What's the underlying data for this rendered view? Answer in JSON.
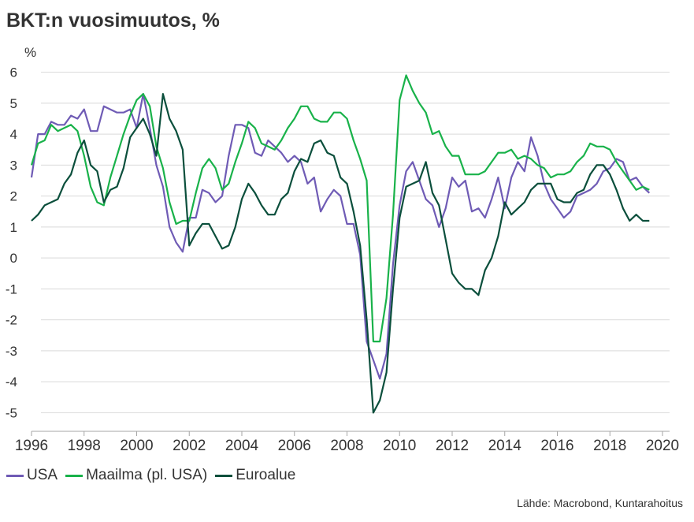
{
  "chart_data": {
    "type": "line",
    "title": "BKT:n vuosimuutos, %",
    "ylabel": "%",
    "xlabel": "",
    "xlim": [
      1996,
      2020
    ],
    "ylim": [
      -5.5,
      6.5
    ],
    "x_ticks": [
      1996,
      1998,
      2000,
      2002,
      2004,
      2006,
      2008,
      2010,
      2012,
      2014,
      2016,
      2018,
      2020
    ],
    "y_ticks": [
      -5,
      -4,
      -3,
      -2,
      -1,
      0,
      1,
      2,
      3,
      4,
      5,
      6
    ],
    "grid": "horizontal",
    "legend_position": "bottom-left",
    "source": "Lähde: Macrobond, Kuntarahoitus",
    "series": [
      {
        "name": "USA",
        "color": "#6f5bb5",
        "points": [
          [
            1996.0,
            2.6
          ],
          [
            1996.25,
            4.0
          ],
          [
            1996.5,
            4.0
          ],
          [
            1996.75,
            4.4
          ],
          [
            1997.0,
            4.3
          ],
          [
            1997.25,
            4.3
          ],
          [
            1997.5,
            4.6
          ],
          [
            1997.75,
            4.5
          ],
          [
            1998.0,
            4.8
          ],
          [
            1998.25,
            4.1
          ],
          [
            1998.5,
            4.1
          ],
          [
            1998.75,
            4.9
          ],
          [
            1999.0,
            4.8
          ],
          [
            1999.25,
            4.7
          ],
          [
            1999.5,
            4.7
          ],
          [
            1999.75,
            4.8
          ],
          [
            2000.0,
            4.2
          ],
          [
            2000.25,
            5.3
          ],
          [
            2000.5,
            4.2
          ],
          [
            2000.75,
            3.0
          ],
          [
            2001.0,
            2.3
          ],
          [
            2001.25,
            1.0
          ],
          [
            2001.5,
            0.5
          ],
          [
            2001.75,
            0.2
          ],
          [
            2002.0,
            1.3
          ],
          [
            2002.25,
            1.3
          ],
          [
            2002.5,
            2.2
          ],
          [
            2002.75,
            2.1
          ],
          [
            2003.0,
            1.8
          ],
          [
            2003.25,
            2.0
          ],
          [
            2003.5,
            3.3
          ],
          [
            2003.75,
            4.3
          ],
          [
            2004.0,
            4.3
          ],
          [
            2004.25,
            4.2
          ],
          [
            2004.5,
            3.4
          ],
          [
            2004.75,
            3.3
          ],
          [
            2005.0,
            3.8
          ],
          [
            2005.25,
            3.6
          ],
          [
            2005.5,
            3.4
          ],
          [
            2005.75,
            3.1
          ],
          [
            2006.0,
            3.3
          ],
          [
            2006.25,
            3.1
          ],
          [
            2006.5,
            2.4
          ],
          [
            2006.75,
            2.6
          ],
          [
            2007.0,
            1.5
          ],
          [
            2007.25,
            1.9
          ],
          [
            2007.5,
            2.2
          ],
          [
            2007.75,
            2.0
          ],
          [
            2008.0,
            1.1
          ],
          [
            2008.25,
            1.1
          ],
          [
            2008.5,
            0.1
          ],
          [
            2008.75,
            -2.7
          ],
          [
            2009.0,
            -3.3
          ],
          [
            2009.25,
            -3.9
          ],
          [
            2009.5,
            -3.1
          ],
          [
            2009.75,
            -0.2
          ],
          [
            2010.0,
            1.7
          ],
          [
            2010.25,
            2.8
          ],
          [
            2010.5,
            3.1
          ],
          [
            2010.75,
            2.5
          ],
          [
            2011.0,
            1.9
          ],
          [
            2011.25,
            1.7
          ],
          [
            2011.5,
            1.0
          ],
          [
            2011.75,
            1.6
          ],
          [
            2012.0,
            2.6
          ],
          [
            2012.25,
            2.3
          ],
          [
            2012.5,
            2.5
          ],
          [
            2012.75,
            1.5
          ],
          [
            2013.0,
            1.6
          ],
          [
            2013.25,
            1.3
          ],
          [
            2013.5,
            1.9
          ],
          [
            2013.75,
            2.6
          ],
          [
            2014.0,
            1.6
          ],
          [
            2014.25,
            2.6
          ],
          [
            2014.5,
            3.1
          ],
          [
            2014.75,
            2.8
          ],
          [
            2015.0,
            3.9
          ],
          [
            2015.25,
            3.3
          ],
          [
            2015.5,
            2.4
          ],
          [
            2015.75,
            1.9
          ],
          [
            2016.0,
            1.6
          ],
          [
            2016.25,
            1.3
          ],
          [
            2016.5,
            1.5
          ],
          [
            2016.75,
            2.0
          ],
          [
            2017.0,
            2.1
          ],
          [
            2017.25,
            2.2
          ],
          [
            2017.5,
            2.4
          ],
          [
            2017.75,
            2.8
          ],
          [
            2018.0,
            2.9
          ],
          [
            2018.25,
            3.2
          ],
          [
            2018.5,
            3.1
          ],
          [
            2018.75,
            2.5
          ],
          [
            2019.0,
            2.6
          ],
          [
            2019.25,
            2.3
          ],
          [
            2019.5,
            2.1
          ]
        ]
      },
      {
        "name": "Maailma (pl. USA)",
        "color": "#19b24a",
        "points": [
          [
            1996.0,
            3.0
          ],
          [
            1996.25,
            3.7
          ],
          [
            1996.5,
            3.8
          ],
          [
            1996.75,
            4.3
          ],
          [
            1997.0,
            4.1
          ],
          [
            1997.25,
            4.2
          ],
          [
            1997.5,
            4.3
          ],
          [
            1997.75,
            4.1
          ],
          [
            1998.0,
            3.3
          ],
          [
            1998.25,
            2.3
          ],
          [
            1998.5,
            1.8
          ],
          [
            1998.75,
            1.7
          ],
          [
            1999.0,
            2.6
          ],
          [
            1999.25,
            3.3
          ],
          [
            1999.5,
            4.0
          ],
          [
            1999.75,
            4.6
          ],
          [
            2000.0,
            5.1
          ],
          [
            2000.25,
            5.3
          ],
          [
            2000.5,
            4.9
          ],
          [
            2000.75,
            3.6
          ],
          [
            2001.0,
            2.9
          ],
          [
            2001.25,
            1.8
          ],
          [
            2001.5,
            1.1
          ],
          [
            2001.75,
            1.2
          ],
          [
            2002.0,
            1.2
          ],
          [
            2002.25,
            2.1
          ],
          [
            2002.5,
            2.9
          ],
          [
            2002.75,
            3.2
          ],
          [
            2003.0,
            2.9
          ],
          [
            2003.25,
            2.2
          ],
          [
            2003.5,
            2.4
          ],
          [
            2003.75,
            3.1
          ],
          [
            2004.0,
            3.7
          ],
          [
            2004.25,
            4.4
          ],
          [
            2004.5,
            4.2
          ],
          [
            2004.75,
            3.7
          ],
          [
            2005.0,
            3.6
          ],
          [
            2005.25,
            3.5
          ],
          [
            2005.5,
            3.8
          ],
          [
            2005.75,
            4.2
          ],
          [
            2006.0,
            4.5
          ],
          [
            2006.25,
            4.9
          ],
          [
            2006.5,
            4.9
          ],
          [
            2006.75,
            4.5
          ],
          [
            2007.0,
            4.4
          ],
          [
            2007.25,
            4.4
          ],
          [
            2007.5,
            4.7
          ],
          [
            2007.75,
            4.7
          ],
          [
            2008.0,
            4.5
          ],
          [
            2008.25,
            3.8
          ],
          [
            2008.5,
            3.2
          ],
          [
            2008.75,
            2.5
          ],
          [
            2009.0,
            -2.7
          ],
          [
            2009.25,
            -2.7
          ],
          [
            2009.5,
            -1.3
          ],
          [
            2009.75,
            1.4
          ],
          [
            2010.0,
            5.1
          ],
          [
            2010.25,
            5.9
          ],
          [
            2010.5,
            5.4
          ],
          [
            2010.75,
            5.0
          ],
          [
            2011.0,
            4.7
          ],
          [
            2011.25,
            4.0
          ],
          [
            2011.5,
            4.1
          ],
          [
            2011.75,
            3.6
          ],
          [
            2012.0,
            3.3
          ],
          [
            2012.25,
            3.3
          ],
          [
            2012.5,
            2.7
          ],
          [
            2012.75,
            2.7
          ],
          [
            2013.0,
            2.7
          ],
          [
            2013.25,
            2.8
          ],
          [
            2013.5,
            3.1
          ],
          [
            2013.75,
            3.4
          ],
          [
            2014.0,
            3.4
          ],
          [
            2014.25,
            3.5
          ],
          [
            2014.5,
            3.2
          ],
          [
            2014.75,
            3.3
          ],
          [
            2015.0,
            3.2
          ],
          [
            2015.25,
            3.0
          ],
          [
            2015.5,
            2.9
          ],
          [
            2015.75,
            2.6
          ],
          [
            2016.0,
            2.7
          ],
          [
            2016.25,
            2.7
          ],
          [
            2016.5,
            2.8
          ],
          [
            2016.75,
            3.1
          ],
          [
            2017.0,
            3.3
          ],
          [
            2017.25,
            3.7
          ],
          [
            2017.5,
            3.6
          ],
          [
            2017.75,
            3.6
          ],
          [
            2018.0,
            3.5
          ],
          [
            2018.25,
            3.1
          ],
          [
            2018.5,
            2.8
          ],
          [
            2018.75,
            2.5
          ],
          [
            2019.0,
            2.2
          ],
          [
            2019.25,
            2.3
          ],
          [
            2019.5,
            2.2
          ]
        ]
      },
      {
        "name": "Euroalue",
        "color": "#0b4f3c",
        "points": [
          [
            1996.0,
            1.2
          ],
          [
            1996.25,
            1.4
          ],
          [
            1996.5,
            1.7
          ],
          [
            1996.75,
            1.8
          ],
          [
            1997.0,
            1.9
          ],
          [
            1997.25,
            2.4
          ],
          [
            1997.5,
            2.7
          ],
          [
            1997.75,
            3.4
          ],
          [
            1998.0,
            3.8
          ],
          [
            1998.25,
            3.0
          ],
          [
            1998.5,
            2.8
          ],
          [
            1998.75,
            1.8
          ],
          [
            1999.0,
            2.2
          ],
          [
            1999.25,
            2.3
          ],
          [
            1999.5,
            2.9
          ],
          [
            1999.75,
            3.9
          ],
          [
            2000.0,
            4.2
          ],
          [
            2000.25,
            4.5
          ],
          [
            2000.5,
            4.0
          ],
          [
            2000.75,
            3.3
          ],
          [
            2001.0,
            5.3
          ],
          [
            2001.25,
            4.5
          ],
          [
            2001.5,
            4.1
          ],
          [
            2001.75,
            3.5
          ],
          [
            2002.0,
            0.4
          ],
          [
            2002.25,
            0.8
          ],
          [
            2002.5,
            1.1
          ],
          [
            2002.75,
            1.1
          ],
          [
            2003.0,
            0.7
          ],
          [
            2003.25,
            0.3
          ],
          [
            2003.5,
            0.4
          ],
          [
            2003.75,
            1.0
          ],
          [
            2004.0,
            1.9
          ],
          [
            2004.25,
            2.4
          ],
          [
            2004.5,
            2.1
          ],
          [
            2004.75,
            1.7
          ],
          [
            2005.0,
            1.4
          ],
          [
            2005.25,
            1.4
          ],
          [
            2005.5,
            1.9
          ],
          [
            2005.75,
            2.1
          ],
          [
            2006.0,
            2.8
          ],
          [
            2006.25,
            3.2
          ],
          [
            2006.5,
            3.1
          ],
          [
            2006.75,
            3.7
          ],
          [
            2007.0,
            3.8
          ],
          [
            2007.25,
            3.4
          ],
          [
            2007.5,
            3.3
          ],
          [
            2007.75,
            2.6
          ],
          [
            2008.0,
            2.4
          ],
          [
            2008.25,
            1.5
          ],
          [
            2008.5,
            0.4
          ],
          [
            2008.75,
            -2.0
          ],
          [
            2009.0,
            -5.0
          ],
          [
            2009.25,
            -4.6
          ],
          [
            2009.5,
            -3.7
          ],
          [
            2009.75,
            -1.0
          ],
          [
            2010.0,
            1.3
          ],
          [
            2010.25,
            2.3
          ],
          [
            2010.5,
            2.4
          ],
          [
            2010.75,
            2.5
          ],
          [
            2011.0,
            3.1
          ],
          [
            2011.25,
            2.1
          ],
          [
            2011.5,
            1.7
          ],
          [
            2011.75,
            0.6
          ],
          [
            2012.0,
            -0.5
          ],
          [
            2012.25,
            -0.8
          ],
          [
            2012.5,
            -1.0
          ],
          [
            2012.75,
            -1.0
          ],
          [
            2013.0,
            -1.2
          ],
          [
            2013.25,
            -0.4
          ],
          [
            2013.5,
            0.0
          ],
          [
            2013.75,
            0.7
          ],
          [
            2014.0,
            1.8
          ],
          [
            2014.25,
            1.4
          ],
          [
            2014.5,
            1.6
          ],
          [
            2014.75,
            1.8
          ],
          [
            2015.0,
            2.2
          ],
          [
            2015.25,
            2.4
          ],
          [
            2015.5,
            2.4
          ],
          [
            2015.75,
            2.4
          ],
          [
            2016.0,
            1.9
          ],
          [
            2016.25,
            1.8
          ],
          [
            2016.5,
            1.8
          ],
          [
            2016.75,
            2.1
          ],
          [
            2017.0,
            2.2
          ],
          [
            2017.25,
            2.7
          ],
          [
            2017.5,
            3.0
          ],
          [
            2017.75,
            3.0
          ],
          [
            2018.0,
            2.7
          ],
          [
            2018.25,
            2.2
          ],
          [
            2018.5,
            1.6
          ],
          [
            2018.75,
            1.2
          ],
          [
            2019.0,
            1.4
          ],
          [
            2019.25,
            1.2
          ],
          [
            2019.5,
            1.2
          ]
        ]
      }
    ]
  }
}
